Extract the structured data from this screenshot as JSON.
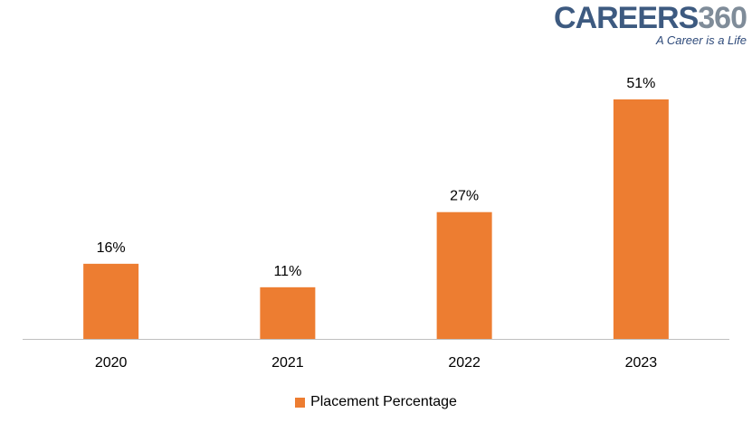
{
  "brand": {
    "name_part1": "CAREERS",
    "name_part2": "360",
    "tagline": "A Career is a Life",
    "color_part1": "#3d5a80",
    "color_part2": "#7f8c99",
    "tagline_color": "#2e4a7a"
  },
  "chart_data": {
    "type": "bar",
    "categories": [
      "2020",
      "2021",
      "2022",
      "2023"
    ],
    "series": [
      {
        "name": "Placement Percentage",
        "values": [
          16,
          11,
          27,
          51
        ],
        "data_labels": [
          "16%",
          "11%",
          "27%",
          "51%"
        ]
      }
    ],
    "ylim": [
      0,
      51
    ],
    "grid": false,
    "legend": "bottom-center",
    "bar_color": "#ed7d31",
    "axis_color": "#bfbfbf"
  }
}
